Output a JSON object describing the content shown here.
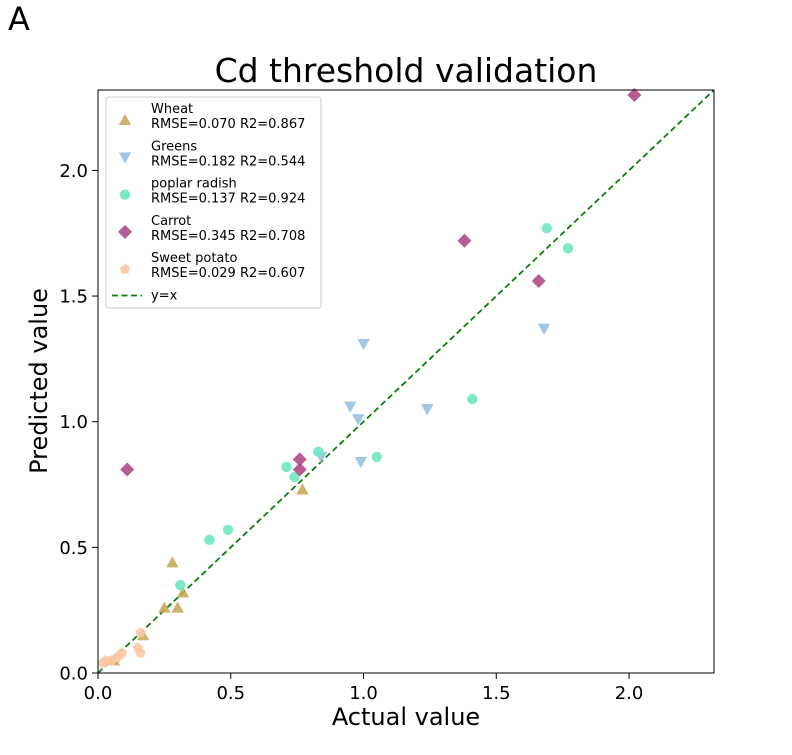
{
  "panel_label": "A",
  "chart_data": {
    "type": "scatter",
    "title": "Cd threshold validation",
    "xlabel": "Actual value",
    "ylabel": "Predicted value",
    "xlim": [
      0,
      2.32
    ],
    "ylim": [
      0,
      2.32
    ],
    "xticks": [
      0.0,
      0.5,
      1.0,
      1.5,
      2.0
    ],
    "yticks": [
      0.0,
      0.5,
      1.0,
      1.5,
      2.0
    ],
    "xtick_labels": [
      "0.0",
      "0.5",
      "1.0",
      "1.5",
      "2.0"
    ],
    "ytick_labels": [
      "0.0",
      "0.5",
      "1.0",
      "1.5",
      "2.0"
    ],
    "grid": false,
    "legend_position": "top-left",
    "series": [
      {
        "name": "Wheat",
        "stats": "RMSE=0.070 R2=0.867",
        "marker": "triangle-up",
        "color": "#c9a95c",
        "points": [
          [
            0.06,
            0.05
          ],
          [
            0.17,
            0.15
          ],
          [
            0.25,
            0.26
          ],
          [
            0.28,
            0.44
          ],
          [
            0.3,
            0.26
          ],
          [
            0.32,
            0.32
          ],
          [
            0.77,
            0.73
          ]
        ]
      },
      {
        "name": "Greens",
        "stats": "RMSE=0.182 R2=0.544",
        "marker": "triangle-down",
        "color": "#90bde0",
        "points": [
          [
            0.84,
            0.86
          ],
          [
            0.95,
            1.06
          ],
          [
            0.98,
            1.01
          ],
          [
            0.99,
            0.84
          ],
          [
            1.0,
            1.31
          ],
          [
            1.24,
            1.05
          ],
          [
            1.68,
            1.37
          ]
        ]
      },
      {
        "name": "poplar radish",
        "stats": "RMSE=0.137 R2=0.924",
        "marker": "circle",
        "color": "#6ee8c2",
        "points": [
          [
            0.31,
            0.35
          ],
          [
            0.42,
            0.53
          ],
          [
            0.49,
            0.57
          ],
          [
            0.71,
            0.82
          ],
          [
            0.74,
            0.78
          ],
          [
            0.83,
            0.88
          ],
          [
            1.05,
            0.86
          ],
          [
            1.41,
            1.09
          ],
          [
            1.69,
            1.77
          ],
          [
            1.77,
            1.69
          ]
        ]
      },
      {
        "name": "Carrot",
        "stats": "RMSE=0.345 R2=0.708",
        "marker": "diamond",
        "color": "#b04a88",
        "points": [
          [
            0.11,
            0.81
          ],
          [
            0.76,
            0.85
          ],
          [
            0.76,
            0.81
          ],
          [
            1.38,
            1.72
          ],
          [
            1.66,
            1.56
          ],
          [
            2.02,
            2.3
          ]
        ]
      },
      {
        "name": "Sweet potato",
        "stats": "RMSE=0.029 R2=0.607",
        "marker": "pentagon",
        "color": "#f9c9a4",
        "points": [
          [
            0.02,
            0.04
          ],
          [
            0.03,
            0.05
          ],
          [
            0.05,
            0.05
          ],
          [
            0.07,
            0.06
          ],
          [
            0.08,
            0.07
          ],
          [
            0.09,
            0.08
          ],
          [
            0.15,
            0.1
          ],
          [
            0.16,
            0.08
          ],
          [
            0.16,
            0.16
          ]
        ]
      }
    ],
    "reference_line": {
      "name": "y=x",
      "color": "#0a7f0a",
      "style": "dashed"
    }
  }
}
